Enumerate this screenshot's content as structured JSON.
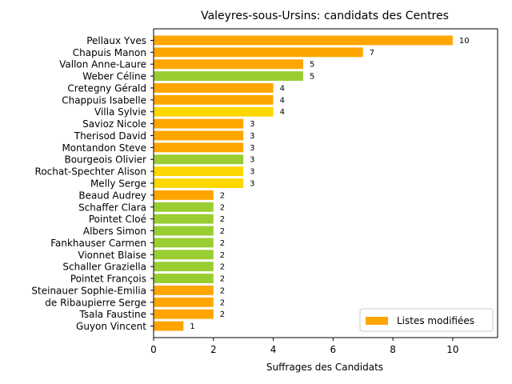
{
  "chart_data": {
    "type": "bar",
    "orientation": "horizontal",
    "title": "Valeyres-sous-Ursins: candidats des Centres",
    "xlabel": "Suffrages des Candidats",
    "ylabel": "",
    "xlim": [
      0,
      11.5
    ],
    "x_ticks": [
      0,
      2,
      4,
      6,
      8,
      10
    ],
    "grid": false,
    "legend": {
      "label": "Listes modifiées",
      "color": "#ffa500",
      "placement": "lower-right"
    },
    "colors": {
      "orange": "#ffa500",
      "green": "#9acd32",
      "gold": "#ffd700"
    },
    "categories": [
      "Pellaux Yves",
      "Chapuis Manon",
      "Vallon Anne-Laure",
      "Weber Céline",
      "Cretegny Gérald",
      "Chappuis Isabelle",
      "Villa Sylvie",
      "Savioz Nicole",
      "Therisod David",
      "Montandon Steve",
      "Bourgeois Olivier",
      "Rochat-Spechter Alison",
      "Melly Serge",
      "Beaud Audrey",
      "Schaffer Clara",
      "Pointet Cloé",
      "Albers Simon",
      "Fankhauser Carmen",
      "Vionnet Blaise",
      "Schaller Graziella",
      "Pointet François",
      "Steinauer Sophie-Emilia",
      "de Ribaupierre Serge",
      "Tsala Faustine",
      "Guyon Vincent"
    ],
    "values": [
      10,
      7,
      5,
      5,
      4,
      4,
      4,
      3,
      3,
      3,
      3,
      3,
      3,
      2,
      2,
      2,
      2,
      2,
      2,
      2,
      2,
      2,
      2,
      2,
      1
    ],
    "bar_colors": [
      "orange",
      "orange",
      "orange",
      "green",
      "orange",
      "orange",
      "gold",
      "orange",
      "orange",
      "orange",
      "green",
      "gold",
      "gold",
      "orange",
      "green",
      "green",
      "green",
      "green",
      "green",
      "green",
      "green",
      "orange",
      "orange",
      "orange",
      "orange"
    ]
  }
}
